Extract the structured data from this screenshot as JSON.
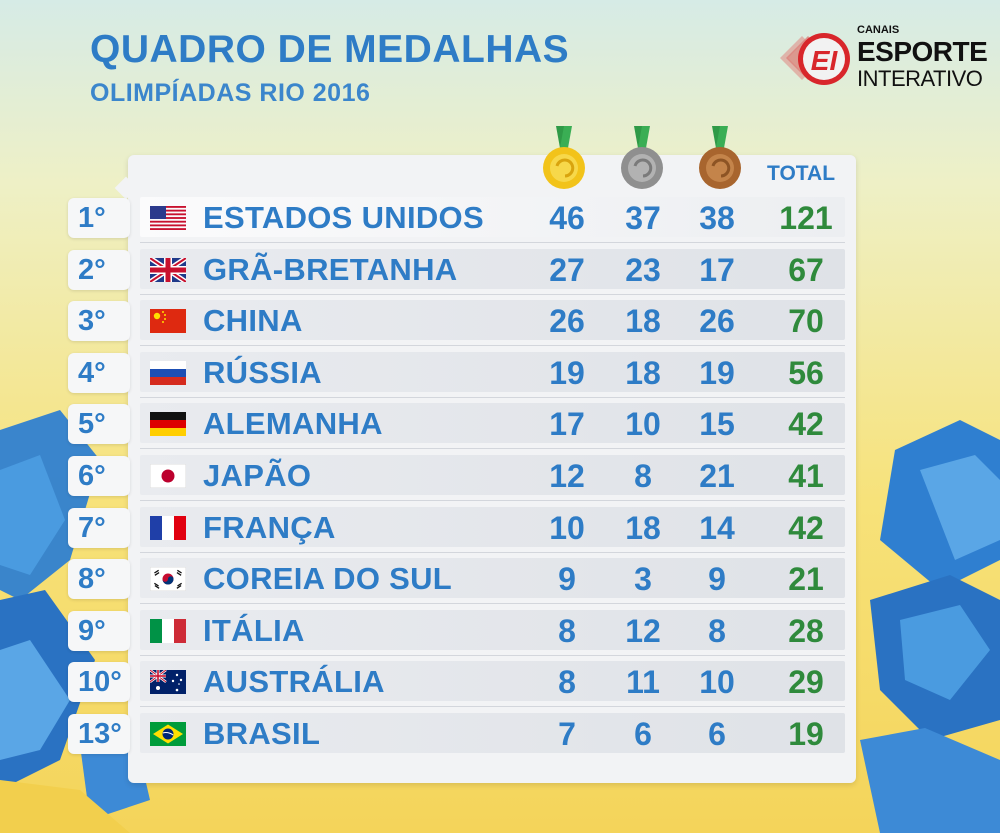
{
  "header": {
    "title": "QUADRO DE MEDALHAS",
    "subtitle": "OLIMPÍADAS RIO 2016"
  },
  "logo": {
    "mark": "EI",
    "canais": "CANAIS",
    "esporte": "ESPORTE",
    "interativo": "INTERATIVO"
  },
  "table": {
    "total_header": "TOTAL",
    "medal_icons": [
      "gold-medal-icon",
      "silver-medal-icon",
      "bronze-medal-icon"
    ],
    "rows": [
      {
        "rank": "1°",
        "flag": "usa-flag-icon",
        "country": "ESTADOS UNIDOS",
        "gold": "46",
        "silver": "37",
        "bronze": "38",
        "total": "121"
      },
      {
        "rank": "2°",
        "flag": "uk-flag-icon",
        "country": "GRÃ-BRETANHA",
        "gold": "27",
        "silver": "23",
        "bronze": "17",
        "total": "67"
      },
      {
        "rank": "3°",
        "flag": "china-flag-icon",
        "country": "CHINA",
        "gold": "26",
        "silver": "18",
        "bronze": "26",
        "total": "70"
      },
      {
        "rank": "4°",
        "flag": "russia-flag-icon",
        "country": "RÚSSIA",
        "gold": "19",
        "silver": "18",
        "bronze": "19",
        "total": "56"
      },
      {
        "rank": "5°",
        "flag": "germany-flag-icon",
        "country": "ALEMANHA",
        "gold": "17",
        "silver": "10",
        "bronze": "15",
        "total": "42"
      },
      {
        "rank": "6°",
        "flag": "japan-flag-icon",
        "country": "JAPÃO",
        "gold": "12",
        "silver": "8",
        "bronze": "21",
        "total": "41"
      },
      {
        "rank": "7°",
        "flag": "france-flag-icon",
        "country": "FRANÇA",
        "gold": "10",
        "silver": "18",
        "bronze": "14",
        "total": "42"
      },
      {
        "rank": "8°",
        "flag": "korea-flag-icon",
        "country": "COREIA DO SUL",
        "gold": "9",
        "silver": "3",
        "bronze": "9",
        "total": "21"
      },
      {
        "rank": "9°",
        "flag": "italy-flag-icon",
        "country": "ITÁLIA",
        "gold": "8",
        "silver": "12",
        "bronze": "8",
        "total": "28"
      },
      {
        "rank": "10°",
        "flag": "australia-flag-icon",
        "country": "AUSTRÁLIA",
        "gold": "8",
        "silver": "11",
        "bronze": "10",
        "total": "29"
      },
      {
        "rank": "13°",
        "flag": "brazil-flag-icon",
        "country": "BRASIL",
        "gold": "7",
        "silver": "6",
        "bronze": "6",
        "total": "19"
      }
    ]
  },
  "colors": {
    "title_blue": "#2e7cc6",
    "total_green": "#2f8a3c",
    "gold": "#f2c31a",
    "silver": "#9a9a9a",
    "bronze": "#b5743a",
    "ribbon": "#2f9a47"
  }
}
